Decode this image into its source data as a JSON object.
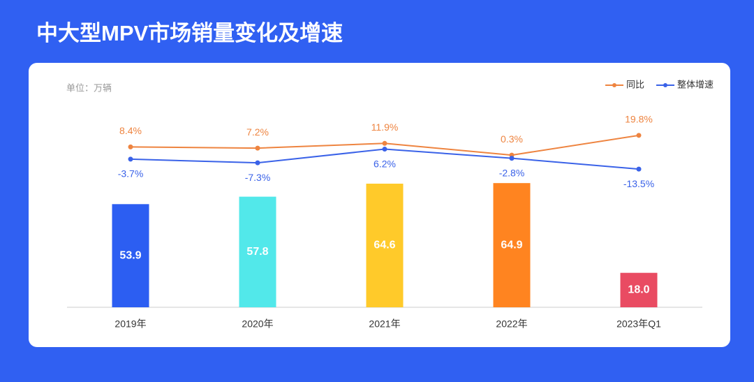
{
  "chart_data": {
    "type": "bar",
    "title": "中大型MPV市场销量变化及增速",
    "unit": "单位：万辆",
    "categories": [
      "2019年",
      "2020年",
      "2021年",
      "2022年",
      "2023年Q1"
    ],
    "values": [
      53.9,
      57.8,
      64.6,
      64.9,
      18.0
    ],
    "value_labels": [
      "53.9",
      "57.8",
      "64.6",
      "64.9",
      "18.0"
    ],
    "colors": [
      "#2c5ef2",
      "#52e8ea",
      "#ffca2a",
      "#ff8420",
      "#e94b62"
    ],
    "ylim": [
      0,
      100
    ],
    "y2lim": [
      -150,
      39
    ],
    "legend": "top-right",
    "series": [
      {
        "name": "同比",
        "color": "#ee8440",
        "axis": "y2",
        "values": [
          8.4,
          7.2,
          11.9,
          0.3,
          19.8
        ],
        "value_labels": [
          "8.4%",
          "7.2%",
          "11.9%",
          "0.3%",
          "19.8%"
        ]
      },
      {
        "name": "整体增速",
        "color": "#3a62e8",
        "axis": "y2",
        "values": [
          -3.7,
          -7.3,
          6.2,
          -2.8,
          -13.5
        ],
        "value_labels": [
          "-3.7%",
          "-7.3%",
          "6.2%",
          "-2.8%",
          "-13.5%"
        ]
      }
    ]
  }
}
